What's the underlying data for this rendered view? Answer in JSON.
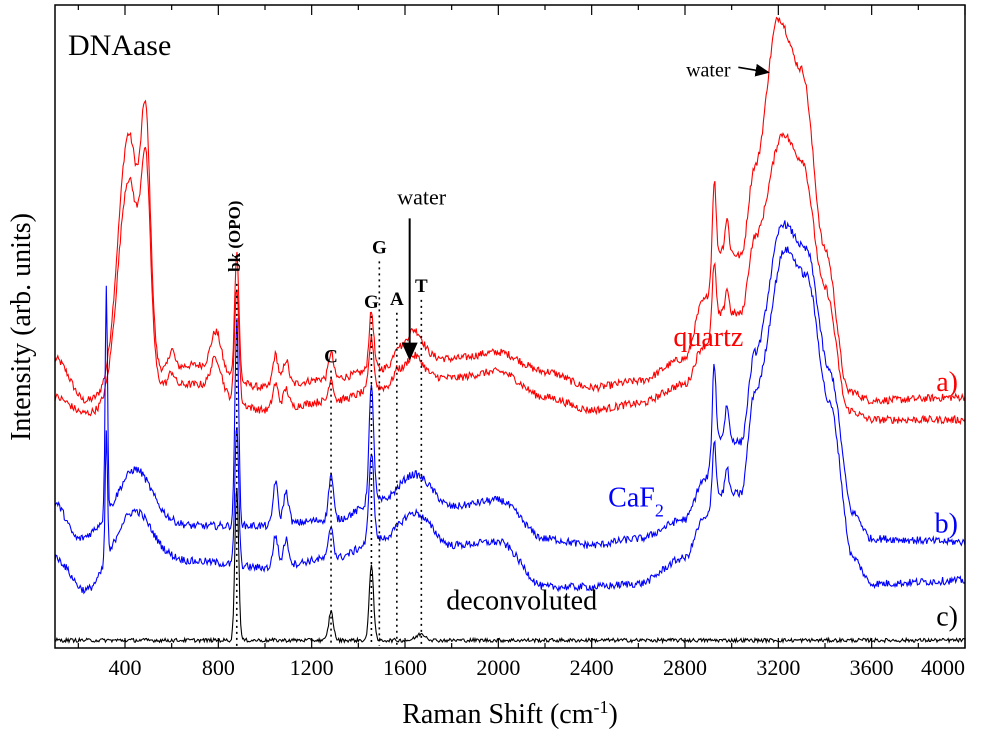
{
  "chart_data": {
    "type": "line",
    "title": "DNAase",
    "xlabel": "Raman Shift (cm",
    "xlabel_sup": "-1",
    "xlabel_end": ")",
    "ylabel": "Intensity (arb. units)",
    "xlim": [
      100,
      4000
    ],
    "ylim": [
      0,
      1
    ],
    "x_ticks": [
      400,
      800,
      1200,
      1600,
      2000,
      2400,
      2800,
      3200,
      3600,
      4000
    ],
    "y_ticks_shown": false,
    "colors": {
      "quartz": "#ff0000",
      "caf2": "#0000ff",
      "deconvoluted": "#000000"
    },
    "series": [
      {
        "name": "quartz upper",
        "color": "#ff0000",
        "baseline": [
          [
            100,
            0.45
          ],
          [
            230,
            0.385
          ],
          [
            500,
            0.43
          ],
          [
            700,
            0.44
          ],
          [
            1000,
            0.405
          ],
          [
            1300,
            0.42
          ],
          [
            1500,
            0.435
          ],
          [
            1620,
            0.455
          ],
          [
            1800,
            0.45
          ],
          [
            2000,
            0.46
          ],
          [
            2200,
            0.43
          ],
          [
            2400,
            0.405
          ],
          [
            2600,
            0.415
          ],
          [
            2800,
            0.45
          ],
          [
            2880,
            0.54
          ],
          [
            2960,
            0.62
          ],
          [
            3040,
            0.61
          ],
          [
            3100,
            0.75
          ],
          [
            3200,
            0.98
          ],
          [
            3300,
            0.9
          ],
          [
            3400,
            0.62
          ],
          [
            3500,
            0.4
          ],
          [
            3600,
            0.385
          ],
          [
            4000,
            0.39
          ]
        ],
        "peaks": [
          [
            415,
            0.38,
            45
          ],
          [
            490,
            0.32,
            20
          ],
          [
            600,
            0.03,
            12
          ],
          [
            790,
            0.06,
            22
          ],
          [
            879,
            0.2,
            9
          ],
          [
            1045,
            0.05,
            12
          ],
          [
            1090,
            0.04,
            12
          ],
          [
            1283,
            0.04,
            10
          ],
          [
            1456,
            0.09,
            10
          ],
          [
            1565,
            0.02,
            14
          ],
          [
            1640,
            0.04,
            35
          ],
          [
            2925,
            0.14,
            8
          ],
          [
            2980,
            0.05,
            8
          ]
        ]
      },
      {
        "name": "quartz lower",
        "color": "#ff0000",
        "baseline": [
          [
            100,
            0.39
          ],
          [
            230,
            0.365
          ],
          [
            500,
            0.41
          ],
          [
            700,
            0.41
          ],
          [
            1000,
            0.37
          ],
          [
            1300,
            0.385
          ],
          [
            1500,
            0.405
          ],
          [
            1620,
            0.425
          ],
          [
            1800,
            0.42
          ],
          [
            2000,
            0.43
          ],
          [
            2200,
            0.39
          ],
          [
            2400,
            0.37
          ],
          [
            2600,
            0.38
          ],
          [
            2800,
            0.41
          ],
          [
            2880,
            0.47
          ],
          [
            2960,
            0.52
          ],
          [
            3040,
            0.52
          ],
          [
            3100,
            0.64
          ],
          [
            3220,
            0.8
          ],
          [
            3300,
            0.76
          ],
          [
            3400,
            0.56
          ],
          [
            3500,
            0.37
          ],
          [
            3600,
            0.355
          ],
          [
            4000,
            0.355
          ]
        ],
        "peaks": [
          [
            415,
            0.33,
            45
          ],
          [
            490,
            0.28,
            20
          ],
          [
            600,
            0.02,
            12
          ],
          [
            790,
            0.05,
            22
          ],
          [
            879,
            0.18,
            9
          ],
          [
            1045,
            0.04,
            12
          ],
          [
            1090,
            0.03,
            12
          ],
          [
            1283,
            0.035,
            10
          ],
          [
            1456,
            0.08,
            10
          ],
          [
            1565,
            0.015,
            14
          ],
          [
            1640,
            0.03,
            35
          ],
          [
            2925,
            0.1,
            8
          ],
          [
            2980,
            0.04,
            8
          ]
        ]
      },
      {
        "name": "CaF2 upper",
        "color": "#0000ff",
        "baseline": [
          [
            100,
            0.225
          ],
          [
            200,
            0.17
          ],
          [
            400,
            0.22
          ],
          [
            700,
            0.19
          ],
          [
            1000,
            0.19
          ],
          [
            1300,
            0.2
          ],
          [
            1500,
            0.23
          ],
          [
            1640,
            0.27
          ],
          [
            1800,
            0.22
          ],
          [
            2000,
            0.23
          ],
          [
            2200,
            0.17
          ],
          [
            2400,
            0.16
          ],
          [
            2600,
            0.17
          ],
          [
            2800,
            0.2
          ],
          [
            2880,
            0.26
          ],
          [
            2960,
            0.33
          ],
          [
            3040,
            0.32
          ],
          [
            3100,
            0.46
          ],
          [
            3220,
            0.66
          ],
          [
            3320,
            0.62
          ],
          [
            3420,
            0.43
          ],
          [
            3520,
            0.21
          ],
          [
            3600,
            0.17
          ],
          [
            4000,
            0.165
          ]
        ],
        "peaks": [
          [
            320,
            0.36,
            5
          ],
          [
            450,
            0.06,
            60
          ],
          [
            879,
            0.32,
            8
          ],
          [
            1045,
            0.07,
            10
          ],
          [
            1090,
            0.05,
            12
          ],
          [
            1283,
            0.07,
            10
          ],
          [
            1456,
            0.18,
            10
          ],
          [
            2925,
            0.14,
            8
          ],
          [
            2980,
            0.05,
            8
          ]
        ]
      },
      {
        "name": "CaF2 lower",
        "color": "#0000ff",
        "baseline": [
          [
            100,
            0.14
          ],
          [
            230,
            0.09
          ],
          [
            400,
            0.165
          ],
          [
            700,
            0.135
          ],
          [
            1000,
            0.125
          ],
          [
            1300,
            0.14
          ],
          [
            1500,
            0.17
          ],
          [
            1640,
            0.21
          ],
          [
            1800,
            0.16
          ],
          [
            2000,
            0.165
          ],
          [
            2200,
            0.095
          ],
          [
            2400,
            0.095
          ],
          [
            2600,
            0.1
          ],
          [
            2800,
            0.14
          ],
          [
            2880,
            0.2
          ],
          [
            2960,
            0.24
          ],
          [
            3040,
            0.24
          ],
          [
            3100,
            0.4
          ],
          [
            3230,
            0.62
          ],
          [
            3320,
            0.58
          ],
          [
            3420,
            0.38
          ],
          [
            3520,
            0.14
          ],
          [
            3600,
            0.1
          ],
          [
            4000,
            0.105
          ]
        ],
        "peaks": [
          [
            320,
            0.2,
            5
          ],
          [
            450,
            0.05,
            60
          ],
          [
            879,
            0.22,
            8
          ],
          [
            1045,
            0.05,
            10
          ],
          [
            1090,
            0.04,
            12
          ],
          [
            1283,
            0.05,
            10
          ],
          [
            1456,
            0.14,
            10
          ],
          [
            2925,
            0.1,
            8
          ],
          [
            2980,
            0.04,
            8
          ]
        ]
      },
      {
        "name": "deconvoluted",
        "color": "#000000",
        "baseline": [
          [
            100,
            0.012
          ],
          [
            4000,
            0.012
          ]
        ],
        "peaks": [
          [
            879,
            0.24,
            8
          ],
          [
            1283,
            0.045,
            10
          ],
          [
            1456,
            0.12,
            9
          ],
          [
            1670,
            0.01,
            20
          ]
        ]
      }
    ],
    "annotations": {
      "peak_labels": [
        {
          "text": "bk (OPO)",
          "x": 879,
          "y_frac": 0.585,
          "rotated": true
        },
        {
          "text": "C",
          "x": 1283,
          "y_frac": 0.45
        },
        {
          "text": "G",
          "x": 1456,
          "y_frac": 0.535
        },
        {
          "text": "G",
          "x": 1490,
          "y_frac": 0.62
        },
        {
          "text": "A",
          "x": 1565,
          "y_frac": 0.54
        },
        {
          "text": "T",
          "x": 1670,
          "y_frac": 0.56
        }
      ],
      "water_mid": {
        "text": "water",
        "x": 1620,
        "label_y_frac": 0.69,
        "arrow_end_frac": 0.45
      },
      "water_top": {
        "text": "water",
        "x": 2900,
        "y_frac": 0.9,
        "arrow_to_x": 3200
      },
      "curve_labels": [
        {
          "text": "quartz",
          "color": "#ff0000",
          "x": 2900,
          "y_frac": 0.47
        },
        {
          "text": "CaF",
          "sub": "2",
          "color": "#0000ff",
          "x": 2590,
          "y_frac": 0.22
        },
        {
          "text": "deconvoluted",
          "color": "#000000",
          "x": 2100,
          "y_frac": 0.06
        }
      ],
      "row_labels": [
        {
          "text": "a)",
          "color": "#ff0000",
          "y_frac": 0.4
        },
        {
          "text": "b)",
          "color": "#0000ff",
          "y_frac": 0.18
        },
        {
          "text": "c)",
          "color": "#000000",
          "y_frac": 0.035
        }
      ]
    }
  }
}
